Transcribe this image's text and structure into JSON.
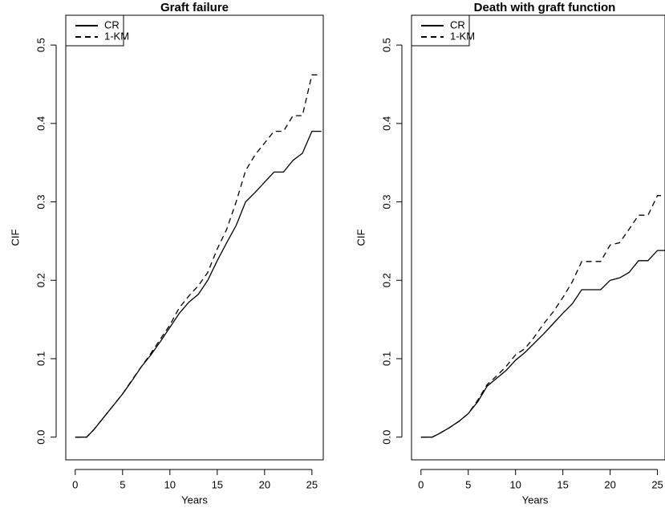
{
  "chart_data": [
    {
      "type": "line",
      "title": "Graft failure",
      "xlabel": "Years",
      "ylabel": "CIF",
      "x": [
        0,
        1.2,
        2,
        3,
        4,
        5,
        6,
        7,
        8,
        9,
        10,
        11,
        12,
        13,
        14,
        15,
        16,
        17,
        18,
        19,
        20,
        21,
        22,
        23,
        24,
        25,
        26
      ],
      "series": [
        {
          "name": "CR",
          "color": "#000000",
          "line_style": "solid",
          "values": [
            0,
            0,
            0.01,
            0.025,
            0.04,
            0.055,
            0.072,
            0.09,
            0.105,
            0.122,
            0.14,
            0.158,
            0.172,
            0.182,
            0.2,
            0.225,
            0.248,
            0.27,
            0.3,
            0.312,
            0.325,
            0.338,
            0.338,
            0.353,
            0.362,
            0.39,
            0.39
          ]
        },
        {
          "name": "1-KM",
          "color": "#000000",
          "line_style": "dashed",
          "values": [
            0,
            0,
            0.01,
            0.025,
            0.04,
            0.055,
            0.073,
            0.09,
            0.107,
            0.125,
            0.143,
            0.165,
            0.18,
            0.193,
            0.21,
            0.24,
            0.265,
            0.3,
            0.34,
            0.36,
            0.375,
            0.39,
            0.39,
            0.41,
            0.41,
            0.462,
            0.462
          ]
        }
      ],
      "xlim": [
        -1,
        26.2
      ],
      "xticks": [
        0,
        5,
        10,
        15,
        20,
        25
      ],
      "ylim": [
        -0.029,
        0.538
      ],
      "yticks": [
        {
          "value": 0,
          "label": "0.0"
        },
        0.1,
        0.2,
        0.3,
        0.4,
        0.5
      ],
      "legend": "top-left"
    },
    {
      "type": "line",
      "title": "Death with graft function",
      "xlabel": "Years",
      "ylabel": "CIF",
      "x": [
        0,
        1.2,
        2,
        3,
        4,
        5,
        6,
        7,
        8,
        9,
        10,
        11,
        12,
        13,
        14,
        15,
        16,
        17,
        18,
        19,
        20,
        21,
        22,
        23,
        24,
        25,
        25.8
      ],
      "series": [
        {
          "name": "CR",
          "color": "#000000",
          "line_style": "solid",
          "values": [
            0,
            0,
            0.005,
            0.012,
            0.02,
            0.03,
            0.045,
            0.065,
            0.075,
            0.085,
            0.098,
            0.108,
            0.12,
            0.132,
            0.145,
            0.158,
            0.17,
            0.188,
            0.188,
            0.188,
            0.2,
            0.203,
            0.21,
            0.225,
            0.225,
            0.238,
            0.238
          ]
        },
        {
          "name": "1-KM",
          "color": "#000000",
          "line_style": "dashed",
          "values": [
            0,
            0,
            0.005,
            0.012,
            0.02,
            0.03,
            0.047,
            0.067,
            0.078,
            0.09,
            0.105,
            0.113,
            0.128,
            0.145,
            0.16,
            0.178,
            0.198,
            0.224,
            0.224,
            0.224,
            0.245,
            0.248,
            0.265,
            0.283,
            0.283,
            0.308,
            0.308
          ]
        }
      ],
      "xlim": [
        -1,
        25.8
      ],
      "xticks": [
        0,
        5,
        10,
        15,
        20,
        25
      ],
      "ylim": [
        -0.029,
        0.538
      ],
      "yticks": [
        {
          "value": 0,
          "label": "0.0"
        },
        0.1,
        0.2,
        0.3,
        0.4,
        0.5
      ],
      "legend": "top-left"
    }
  ]
}
